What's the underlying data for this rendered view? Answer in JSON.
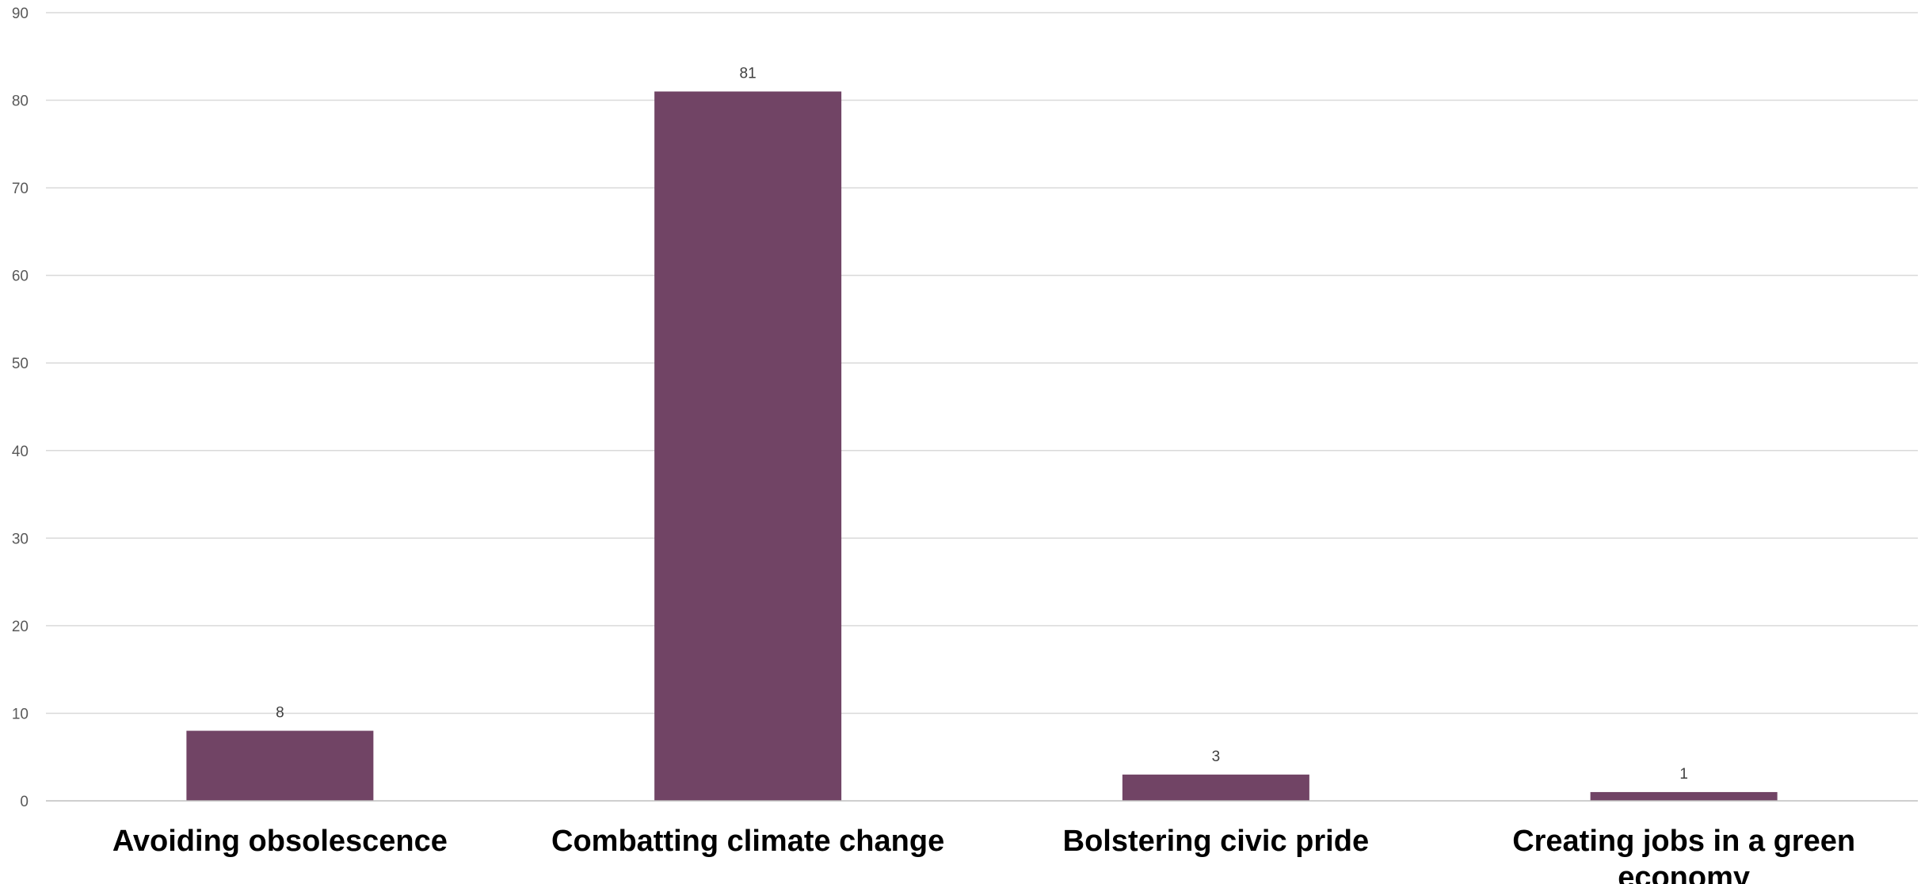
{
  "chart_data": {
    "type": "bar",
    "categories": [
      "Avoiding obsolescence",
      "Combatting climate change",
      "Bolstering civic pride",
      "Creating jobs in a green economy"
    ],
    "values": [
      8,
      81,
      3,
      1
    ],
    "data_labels": [
      "8",
      "81",
      "3",
      "1"
    ],
    "title": "",
    "xlabel": "",
    "ylabel": "",
    "ylim": [
      0,
      90
    ],
    "y_ticks": [
      0,
      10,
      20,
      30,
      40,
      50,
      60,
      70,
      80,
      90
    ],
    "grid": true,
    "legend": "none",
    "colors": {
      "bar": "#714465",
      "grid": "#d9d9d9",
      "axis": "#bfbfbf"
    }
  }
}
